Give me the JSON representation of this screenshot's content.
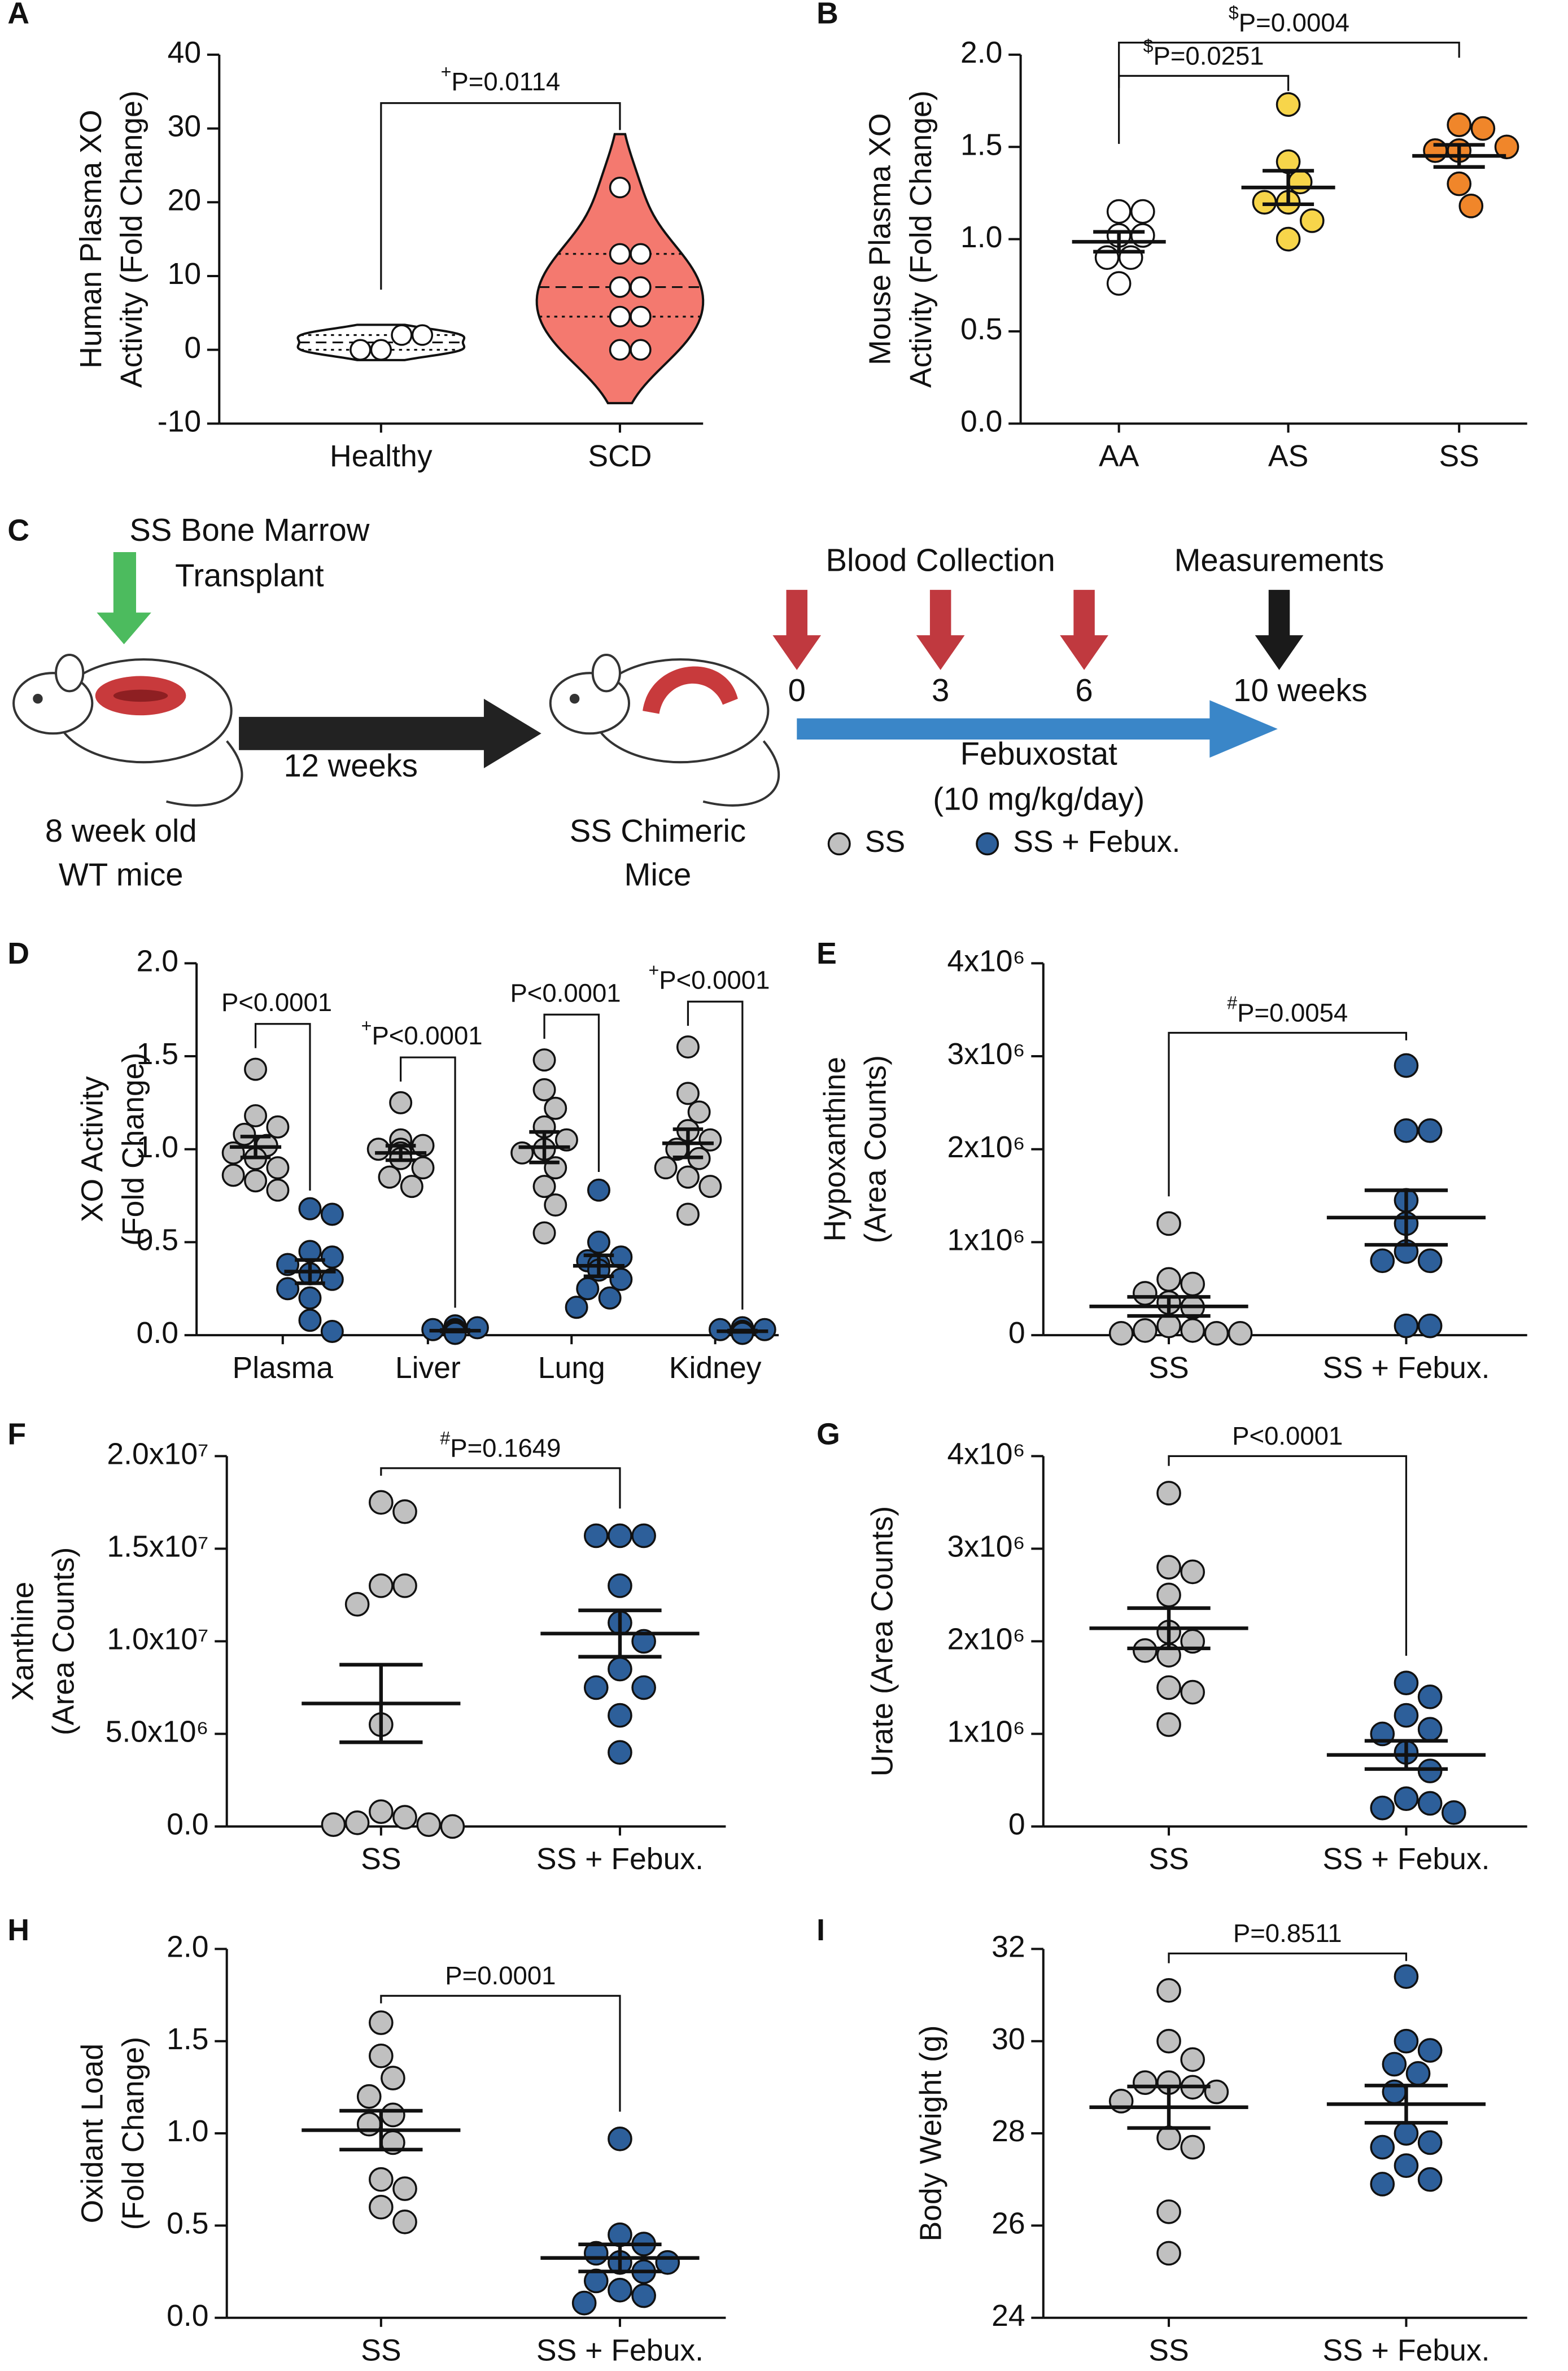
{
  "chart_data": [
    {
      "type": "violin",
      "panel": "A",
      "ylabel": [
        "Human Plasma XO",
        "Activity (Fold Change)"
      ],
      "categories": [
        "Healthy",
        "SCD"
      ],
      "colors": [
        "#ffffff",
        "#f4796f"
      ],
      "values": [
        [
          0,
          2,
          0,
          2
        ],
        [
          22,
          13,
          13,
          8.5,
          8.5,
          4.5,
          4.5,
          0,
          0
        ]
      ],
      "ylim": [
        -10,
        40
      ],
      "yticks": [
        -10,
        0,
        10,
        20,
        30,
        40
      ],
      "annotations": [
        {
          "prefix": "+",
          "text": "P=0.0114"
        }
      ]
    },
    {
      "type": "dot",
      "panel": "B",
      "ylabel": [
        "Mouse Plasma XO",
        "Activity (Fold Change)"
      ],
      "categories": [
        "AA",
        "AS",
        "SS"
      ],
      "colors": [
        "#ffffff",
        "#f7d54a",
        "#f0862a"
      ],
      "values": [
        [
          1.02,
          1.15,
          1.15,
          1.02,
          0.76,
          0.9,
          0.9
        ],
        [
          1.73,
          1.42,
          1.31,
          1.2,
          1.1,
          1.0,
          1.2
        ],
        [
          1.62,
          1.6,
          1.48,
          1.48,
          1.3,
          1.5,
          1.18
        ]
      ],
      "ylim": [
        0,
        2
      ],
      "yticks": [
        {
          "value": 0,
          "label": "0.0"
        },
        0.5,
        {
          "value": 1,
          "label": "1.0"
        },
        1.5,
        {
          "value": 2,
          "label": "2.0"
        }
      ],
      "annotations": [
        {
          "prefix": "$",
          "text": "P=0.0251"
        },
        {
          "prefix": "$",
          "text": "P=0.0004"
        }
      ]
    },
    {
      "type": "grouped_dot",
      "panel": "D",
      "ylabel": [
        "XO Activity",
        "(Fold Change)"
      ],
      "categories": [
        "Plasma",
        "Liver",
        "Lung",
        "Kidney"
      ],
      "series": [
        {
          "name": "SS",
          "color": "#c0c0c0",
          "values": [
            [
              1.43,
              1.18,
              1.12,
              1.08,
              1.02,
              0.98,
              0.95,
              0.9,
              0.86,
              0.83,
              0.78
            ],
            [
              1.25,
              1.05,
              1.02,
              1.0,
              1.0,
              0.98,
              0.95,
              0.9,
              0.85,
              0.8
            ],
            [
              1.48,
              1.32,
              1.22,
              1.12,
              1.05,
              1.0,
              0.98,
              0.9,
              0.8,
              0.7,
              0.55
            ],
            [
              1.55,
              1.3,
              1.2,
              1.1,
              1.05,
              1.0,
              0.95,
              0.9,
              0.85,
              0.8,
              0.65
            ]
          ]
        },
        {
          "name": "SS + Febux.",
          "color": "#2d5f9a",
          "values": [
            [
              0.68,
              0.65,
              0.45,
              0.42,
              0.38,
              0.33,
              0.3,
              0.25,
              0.2,
              0.08,
              0.02
            ],
            [
              0.05,
              0.04,
              0.03,
              0.03,
              0.02,
              0.02,
              0.02,
              0.01,
              0.01,
              0.01
            ],
            [
              0.78,
              0.5,
              0.42,
              0.4,
              0.38,
              0.35,
              0.3,
              0.25,
              0.2,
              0.15
            ],
            [
              0.04,
              0.03,
              0.03,
              0.02,
              0.02,
              0.02,
              0.01,
              0.01,
              0.01
            ]
          ]
        }
      ],
      "ylim": [
        0,
        2
      ],
      "yticks": [
        {
          "value": 0,
          "label": "0.0"
        },
        0.5,
        {
          "value": 1,
          "label": "1.0"
        },
        1.5,
        {
          "value": 2,
          "label": "2.0"
        }
      ],
      "annotations": [
        {
          "text": "P<0.0001"
        },
        {
          "prefix": "+",
          "text": "P<0.0001"
        },
        {
          "text": "P<0.0001"
        },
        {
          "prefix": "+",
          "text": "P<0.0001"
        }
      ]
    },
    {
      "type": "dot",
      "panel": "E",
      "ylabel": [
        "Hypoxanthine",
        "(Area Counts)"
      ],
      "categories": [
        "SS",
        "SS + Febux."
      ],
      "colors": [
        "#c0c0c0",
        "#2d5f9a"
      ],
      "values": [
        [
          1200000,
          600000,
          550000,
          450000,
          350000,
          300000,
          100000,
          50000,
          50000,
          20000,
          20000,
          20000
        ],
        [
          2900000,
          2200000,
          2200000,
          1450000,
          1200000,
          900000,
          800000,
          800000,
          100000,
          100000
        ]
      ],
      "ylim": [
        0,
        4000000
      ],
      "yticks": [
        0,
        {
          "value": 1000000,
          "label": "1x10⁶"
        },
        {
          "value": 2000000,
          "label": "2x10⁶"
        },
        {
          "value": 3000000,
          "label": "3x10⁶"
        },
        {
          "value": 4000000,
          "label": "4x10⁶"
        }
      ],
      "annotations": [
        {
          "prefix": "#",
          "text": "P=0.0054"
        }
      ]
    },
    {
      "type": "dot",
      "panel": "F",
      "ylabel": [
        "Xanthine",
        "(Area Counts)"
      ],
      "categories": [
        "SS",
        "SS + Febux."
      ],
      "colors": [
        "#c0c0c0",
        "#2d5f9a"
      ],
      "values": [
        [
          17500000,
          17000000,
          13000000,
          13000000,
          12000000,
          5500000,
          800000,
          500000,
          200000,
          100000,
          100000,
          0
        ],
        [
          15700000,
          15700000,
          15700000,
          13000000,
          11000000,
          10000000,
          8500000,
          7500000,
          7500000,
          6000000,
          4000000
        ]
      ],
      "ylim": [
        0,
        20000000
      ],
      "yticks": [
        {
          "value": 0,
          "label": "0.0"
        },
        {
          "value": 5000000,
          "label": "5.0x10⁶"
        },
        {
          "value": 10000000,
          "label": "1.0x10⁷"
        },
        {
          "value": 15000000,
          "label": "1.5x10⁷"
        },
        {
          "value": 20000000,
          "label": "2.0x10⁷"
        }
      ],
      "annotations": [
        {
          "prefix": "#",
          "text": "P=0.1649"
        }
      ]
    },
    {
      "type": "dot",
      "panel": "G",
      "ylabel": [
        "Urate (Area Counts)"
      ],
      "categories": [
        "SS",
        "SS + Febux."
      ],
      "colors": [
        "#c0c0c0",
        "#2d5f9a"
      ],
      "values": [
        [
          3600000,
          2800000,
          2750000,
          2500000,
          2100000,
          2000000,
          1900000,
          1850000,
          1500000,
          1450000,
          1100000
        ],
        [
          1550000,
          1400000,
          1200000,
          1050000,
          1000000,
          800000,
          600000,
          300000,
          250000,
          200000,
          150000
        ]
      ],
      "ylim": [
        0,
        4000000
      ],
      "yticks": [
        0,
        {
          "value": 1000000,
          "label": "1x10⁶"
        },
        {
          "value": 2000000,
          "label": "2x10⁶"
        },
        {
          "value": 3000000,
          "label": "3x10⁶"
        },
        {
          "value": 4000000,
          "label": "4x10⁶"
        }
      ],
      "annotations": [
        {
          "text": "P<0.0001"
        }
      ]
    },
    {
      "type": "dot",
      "panel": "H",
      "ylabel": [
        "Oxidant Load",
        "(Fold Change)"
      ],
      "categories": [
        "SS",
        "SS + Febux."
      ],
      "colors": [
        "#c0c0c0",
        "#2d5f9a"
      ],
      "values": [
        [
          1.6,
          1.42,
          1.3,
          1.2,
          1.1,
          1.05,
          0.95,
          0.75,
          0.7,
          0.6,
          0.52
        ],
        [
          0.97,
          0.45,
          0.4,
          0.35,
          0.3,
          0.3,
          0.25,
          0.2,
          0.15,
          0.12,
          0.08
        ]
      ],
      "ylim": [
        0,
        2
      ],
      "yticks": [
        {
          "value": 0,
          "label": "0.0"
        },
        0.5,
        {
          "value": 1,
          "label": "1.0"
        },
        1.5,
        {
          "value": 2,
          "label": "2.0"
        }
      ],
      "annotations": [
        {
          "text": "P=0.0001"
        }
      ]
    },
    {
      "type": "dot",
      "panel": "I",
      "ylabel": [
        "Body Weight (g)"
      ],
      "categories": [
        "SS",
        "SS + Febux."
      ],
      "colors": [
        "#c0c0c0",
        "#2d5f9a"
      ],
      "values": [
        [
          31.1,
          30.0,
          29.6,
          29.1,
          29.1,
          29.0,
          28.9,
          28.7,
          27.9,
          27.7,
          26.3,
          25.4
        ],
        [
          31.4,
          30.0,
          29.8,
          29.5,
          29.3,
          28.9,
          28.0,
          27.8,
          27.7,
          27.3,
          27.0,
          26.9
        ]
      ],
      "ylim": [
        24,
        32
      ],
      "yticks": [
        24,
        26,
        28,
        30,
        32
      ],
      "annotations": [
        {
          "text": "P=0.8511"
        }
      ]
    }
  ],
  "diagram": {
    "panel": "C",
    "transplant": [
      "SS Bone Marrow",
      "Transplant"
    ],
    "duration": "12 weeks",
    "start_mice": [
      "8 week old",
      "WT mice"
    ],
    "end_mice": [
      "SS Chimeric",
      "Mice"
    ],
    "blood_collection": "Blood Collection",
    "measurements": "Measurements",
    "timepoints": [
      "0",
      "3",
      "6",
      "10 weeks"
    ],
    "treatment": [
      "Febuxostat",
      "(10 mg/kg/day)"
    ]
  }
}
